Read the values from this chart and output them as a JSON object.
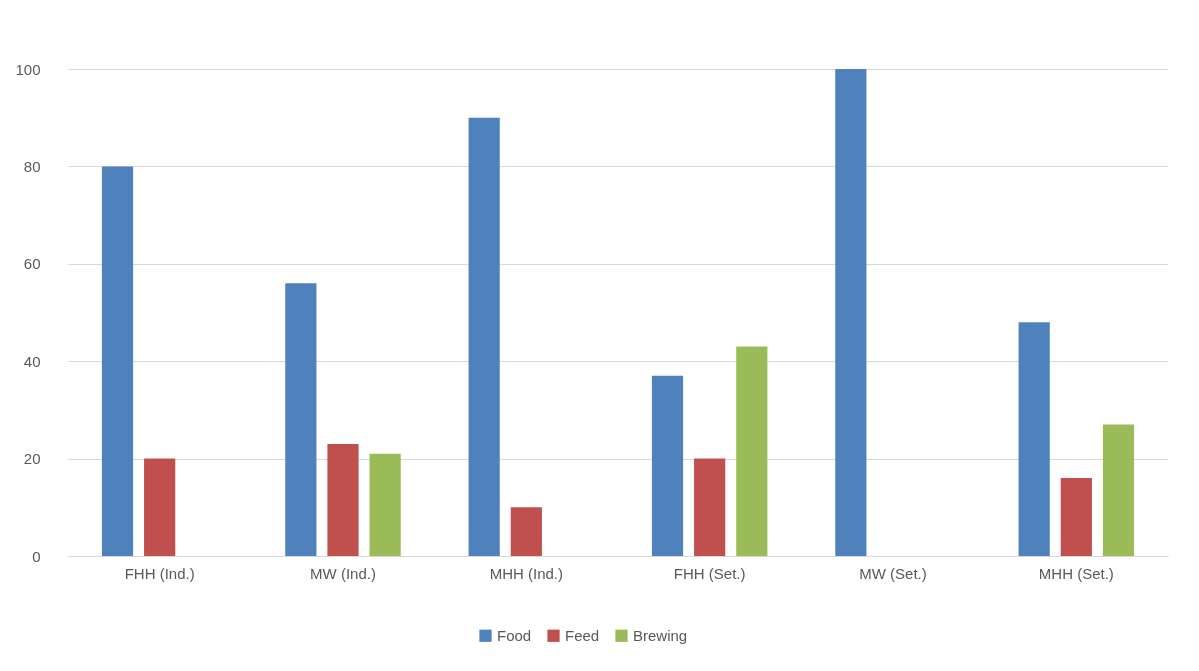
{
  "chart_data": {
    "type": "bar",
    "categories": [
      "FHH (Ind.)",
      "MW (Ind.)",
      "MHH (Ind.)",
      "FHH (Set.)",
      "MW (Set.)",
      "MHH (Set.)"
    ],
    "series": [
      {
        "name": "Food",
        "color": "#4f81bd",
        "values": [
          80,
          56,
          90,
          37,
          100,
          48
        ]
      },
      {
        "name": "Feed",
        "color": "#c0504d",
        "values": [
          20,
          23,
          10,
          20,
          null,
          16
        ]
      },
      {
        "name": "Brewing",
        "color": "#9bbb59",
        "values": [
          null,
          21,
          null,
          43,
          null,
          27
        ]
      }
    ],
    "ylim": [
      0,
      100
    ],
    "yticks": [
      0,
      20,
      40,
      60,
      80,
      100
    ],
    "grid": "y",
    "legend": "bottom"
  }
}
